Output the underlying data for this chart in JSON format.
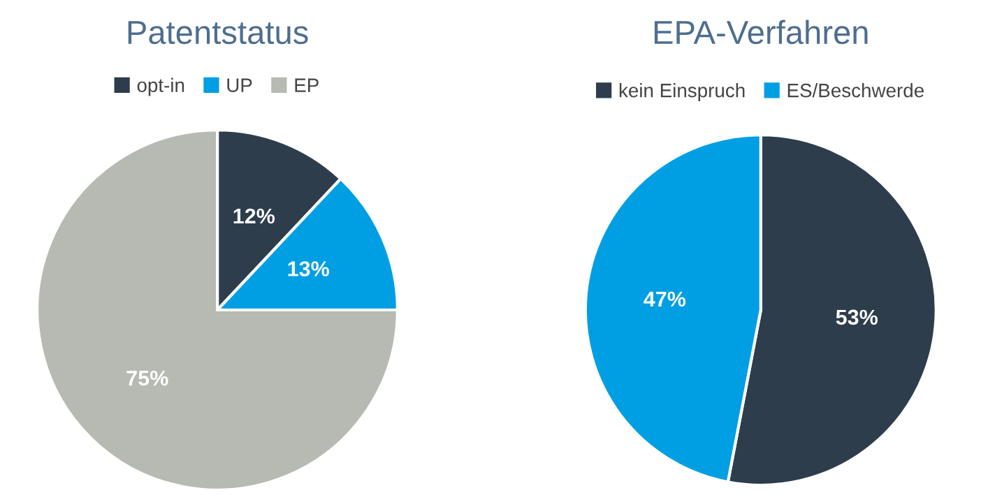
{
  "chart_data": [
    {
      "type": "pie",
      "title": "Patentstatus",
      "categories": [
        "opt-in",
        "UP",
        "EP"
      ],
      "values": [
        12,
        13,
        75
      ],
      "colors": [
        "#2d3d4c",
        "#009fe3",
        "#b6bab2"
      ],
      "value_labels": [
        "12%",
        "13%",
        "75%"
      ],
      "legend": "top"
    },
    {
      "type": "pie",
      "title": "EPA-Verfahren",
      "categories": [
        "kein Einspruch",
        "ES/Beschwerde"
      ],
      "values": [
        53,
        47
      ],
      "colors": [
        "#2d3d4c",
        "#009fe3"
      ],
      "value_labels": [
        "53%",
        "47%"
      ],
      "legend": "top"
    }
  ]
}
